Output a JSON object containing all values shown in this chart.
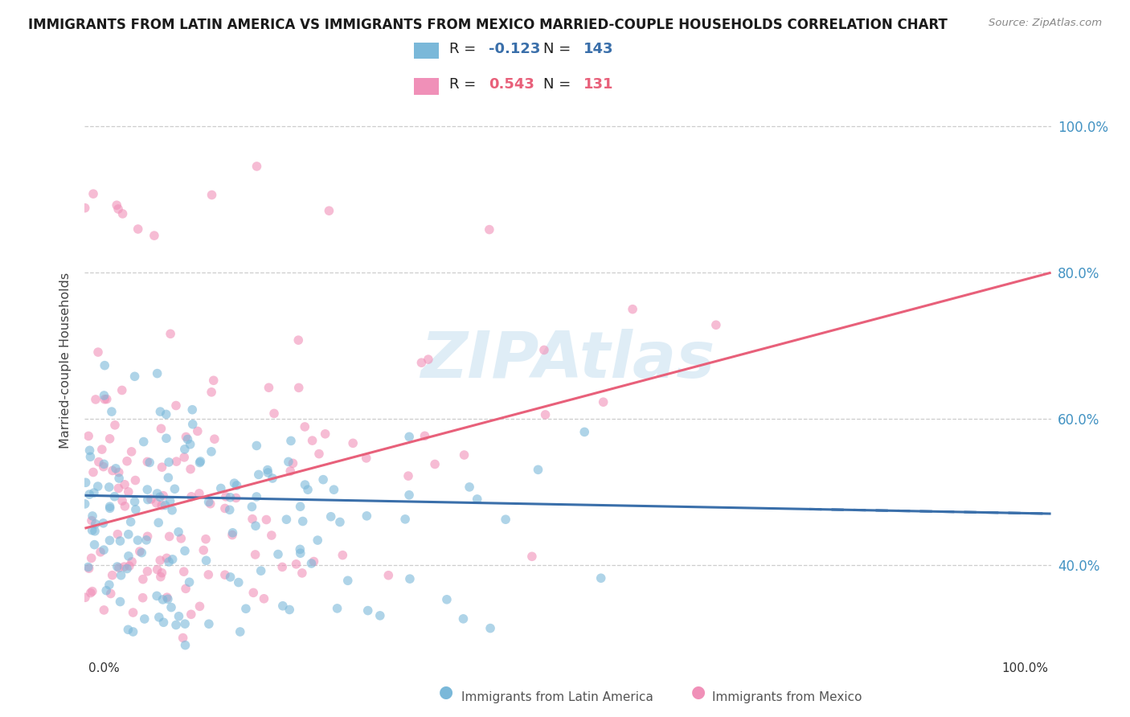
{
  "title": "IMMIGRANTS FROM LATIN AMERICA VS IMMIGRANTS FROM MEXICO MARRIED-COUPLE HOUSEHOLDS CORRELATION CHART",
  "source": "Source: ZipAtlas.com",
  "ylabel": "Married-couple Households",
  "xlim": [
    0,
    100
  ],
  "ylim": [
    28,
    108
  ],
  "yticks": [
    40,
    60,
    80,
    100
  ],
  "ytick_labels": [
    "40.0%",
    "60.0%",
    "80.0%",
    "100.0%"
  ],
  "legend_entry1": {
    "label": "Immigrants from Latin America",
    "R": -0.123,
    "N": 143,
    "color": "#7ab8d9"
  },
  "legend_entry2": {
    "label": "Immigrants from Mexico",
    "R": 0.543,
    "N": 131,
    "color": "#f090b8"
  },
  "line1_color": "#3a6faa",
  "line2_color": "#e8607a",
  "watermark": "ZIPAtlas",
  "background_color": "#ffffff",
  "grid_color": "#c8c8c8",
  "title_fontsize": 13,
  "source_fontsize": 10,
  "seed": 7,
  "blue_line_start_y": 49.5,
  "blue_line_end_y": 47.0,
  "pink_line_start_y": 45.0,
  "pink_line_end_y": 80.0
}
